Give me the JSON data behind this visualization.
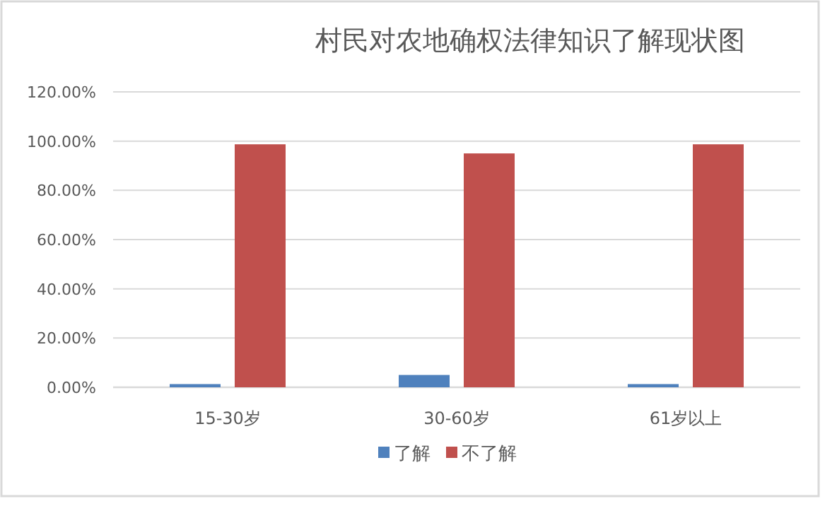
{
  "chart_data": {
    "type": "bar",
    "title": "村民对农地确权法律知识了解现状图",
    "categories": [
      "15-30岁",
      "30-60岁",
      "61岁以上"
    ],
    "series": [
      {
        "name": "了解",
        "color": "#4f81bd",
        "values": [
          1.3,
          5,
          1.3
        ]
      },
      {
        "name": "不了解",
        "color": "#c0504d",
        "values": [
          98.7,
          95,
          98.7
        ]
      }
    ],
    "ylim": [
      0,
      120
    ],
    "yticks": [
      {
        "value": 0,
        "label": "0.00%"
      },
      {
        "value": 20,
        "label": "20.00%"
      },
      {
        "value": 40,
        "label": "40.00%"
      },
      {
        "value": 60,
        "label": "60.00%"
      },
      {
        "value": 80,
        "label": "80.00%"
      },
      {
        "value": 100,
        "label": "100.00%"
      },
      {
        "value": 120,
        "label": "120.00%"
      }
    ],
    "grid": "y",
    "legend": "bottom"
  }
}
